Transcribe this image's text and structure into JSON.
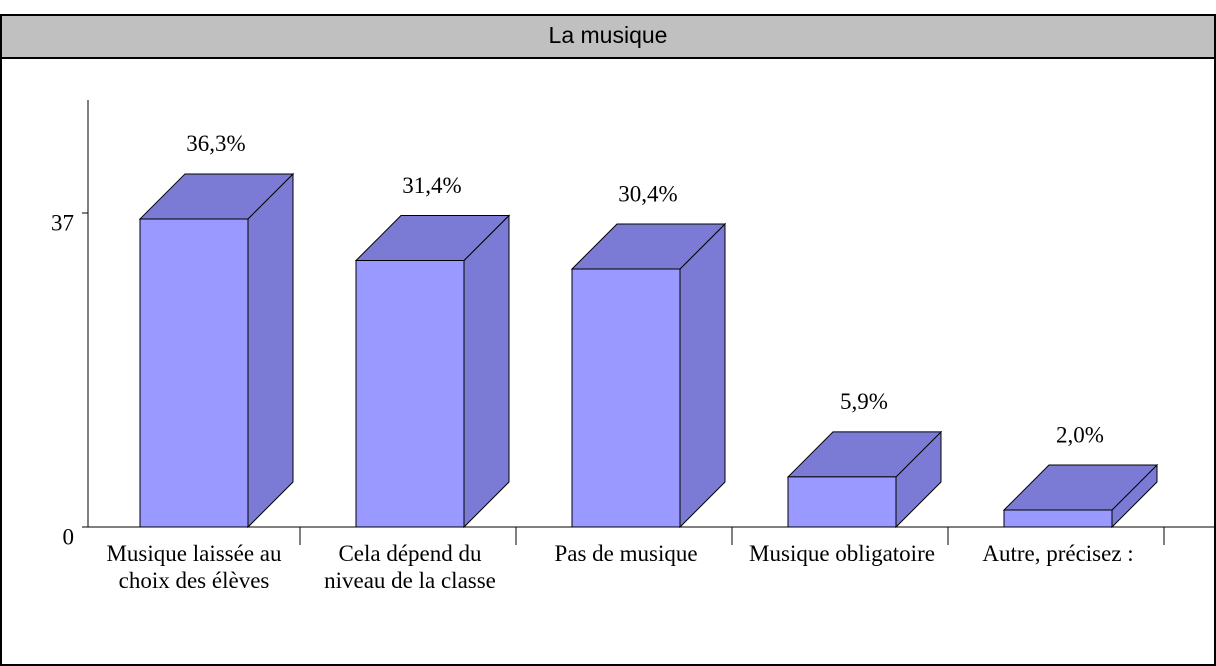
{
  "chart_data": {
    "type": "bar3d",
    "title": "La musique",
    "categories": [
      "Musique laissée au choix des élèves",
      "Cela dépend du niveau de la classe",
      "Pas de musique",
      "Musique obligatoire",
      "Autre, précisez :"
    ],
    "values": [
      36.3,
      31.4,
      30.4,
      5.9,
      2.0
    ],
    "value_labels": [
      "36,3%",
      "31,4%",
      "30,4%",
      "5,9%",
      "2,0%"
    ],
    "color": "#9999ff",
    "side_color": "#7b7bd6",
    "ylim": [
      0,
      37
    ],
    "yticks": [
      0,
      37
    ]
  }
}
